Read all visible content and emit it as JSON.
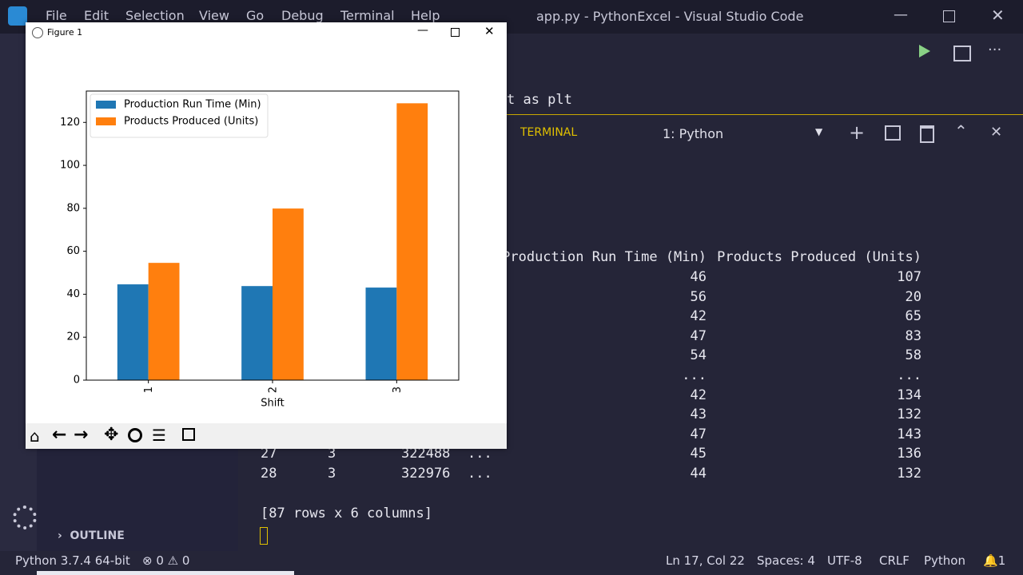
{
  "window": {
    "title": "app.py - PythonExcel - Visual Studio Code",
    "menu": [
      "File",
      "Edit",
      "Selection",
      "View",
      "Go",
      "Debug",
      "Terminal",
      "Help"
    ]
  },
  "editor": {
    "code_fragment": "t as plt"
  },
  "panel": {
    "tab": "TERMINAL",
    "terminal_select": "1: Python",
    "header": [
      "Production Run Time (Min)",
      "Products Produced (Units)"
    ],
    "rows": [
      [
        46,
        107
      ],
      [
        56,
        20
      ],
      [
        42,
        65
      ],
      [
        47,
        83
      ],
      [
        54,
        58
      ],
      [
        "...",
        "..."
      ],
      [
        42,
        134
      ],
      [
        43,
        132
      ],
      [
        47,
        143
      ],
      [
        "27",
        "3",
        "322488",
        "...",
        45,
        136
      ],
      [
        "28",
        "3",
        "322976",
        "...",
        44,
        132
      ]
    ],
    "footer": "[87 rows x 6 columns]"
  },
  "sidebar": {
    "outline": "OUTLINE"
  },
  "status_bar": {
    "interpreter": "Python 3.7.4 64-bit",
    "errors": "0",
    "warnings": "0",
    "position": "Ln 17, Col 22",
    "spaces": "Spaces: 4",
    "encoding": "UTF-8",
    "eol": "CRLF",
    "language": "Python",
    "notifications": "1"
  },
  "figure": {
    "title": "Figure 1"
  },
  "chart_data": {
    "type": "bar",
    "xlabel": "Shift",
    "categories": [
      "1",
      "2",
      "3"
    ],
    "series": [
      {
        "name": "Production Run Time (Min)",
        "color": "#1f77b4",
        "values": [
          44.6,
          43.8,
          43.1
        ]
      },
      {
        "name": "Products Produced (Units)",
        "color": "#ff7f0e",
        "values": [
          54.6,
          79.9,
          128.9
        ]
      }
    ],
    "ylim": [
      0,
      134.6
    ],
    "yticks": [
      0,
      20,
      40,
      60,
      80,
      100,
      120
    ],
    "legend": "upper left",
    "grid": false
  }
}
